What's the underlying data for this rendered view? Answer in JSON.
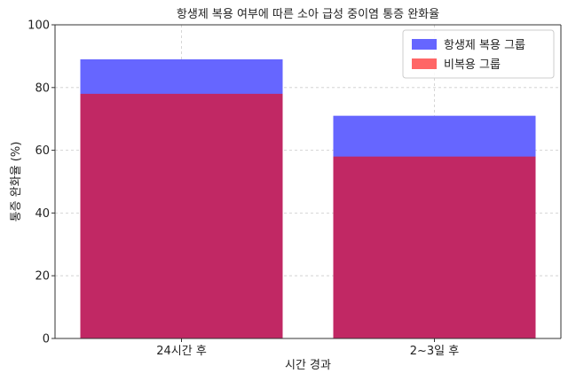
{
  "chart_data": {
    "type": "bar",
    "title": "항생제 복용 여부에 따른 소아 급성 중이염 통증 완화율",
    "xlabel": "시간 경과",
    "ylabel": "통증 완화율 (%)",
    "categories": [
      "24시간 후",
      "2~3일 후"
    ],
    "series": [
      {
        "name": "항생제 복용 그룹",
        "values": [
          89,
          71
        ],
        "color": "#6666ff"
      },
      {
        "name": "비복용 그룹",
        "values": [
          78,
          58
        ],
        "color": "#ff6666"
      }
    ],
    "overlap_color": "#c12864",
    "ylim": [
      0,
      100
    ],
    "yticks": [
      0,
      20,
      40,
      60,
      80,
      100
    ],
    "grid": true,
    "legend_position": "top-right"
  }
}
